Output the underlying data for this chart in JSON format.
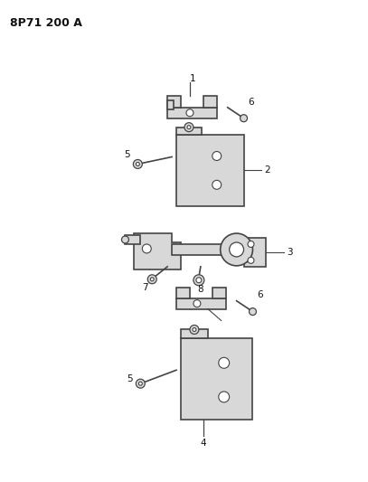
{
  "title": "8P71 200 A",
  "background_color": "#ffffff",
  "fig_width": 4.07,
  "fig_height": 5.33,
  "dpi": 100,
  "line_color": "#333333",
  "text_color": "#111111",
  "part_color": "#d8d8d8",
  "part_stroke": "#444444",
  "part_lw": 1.2,
  "label_fontsize": 7.5
}
